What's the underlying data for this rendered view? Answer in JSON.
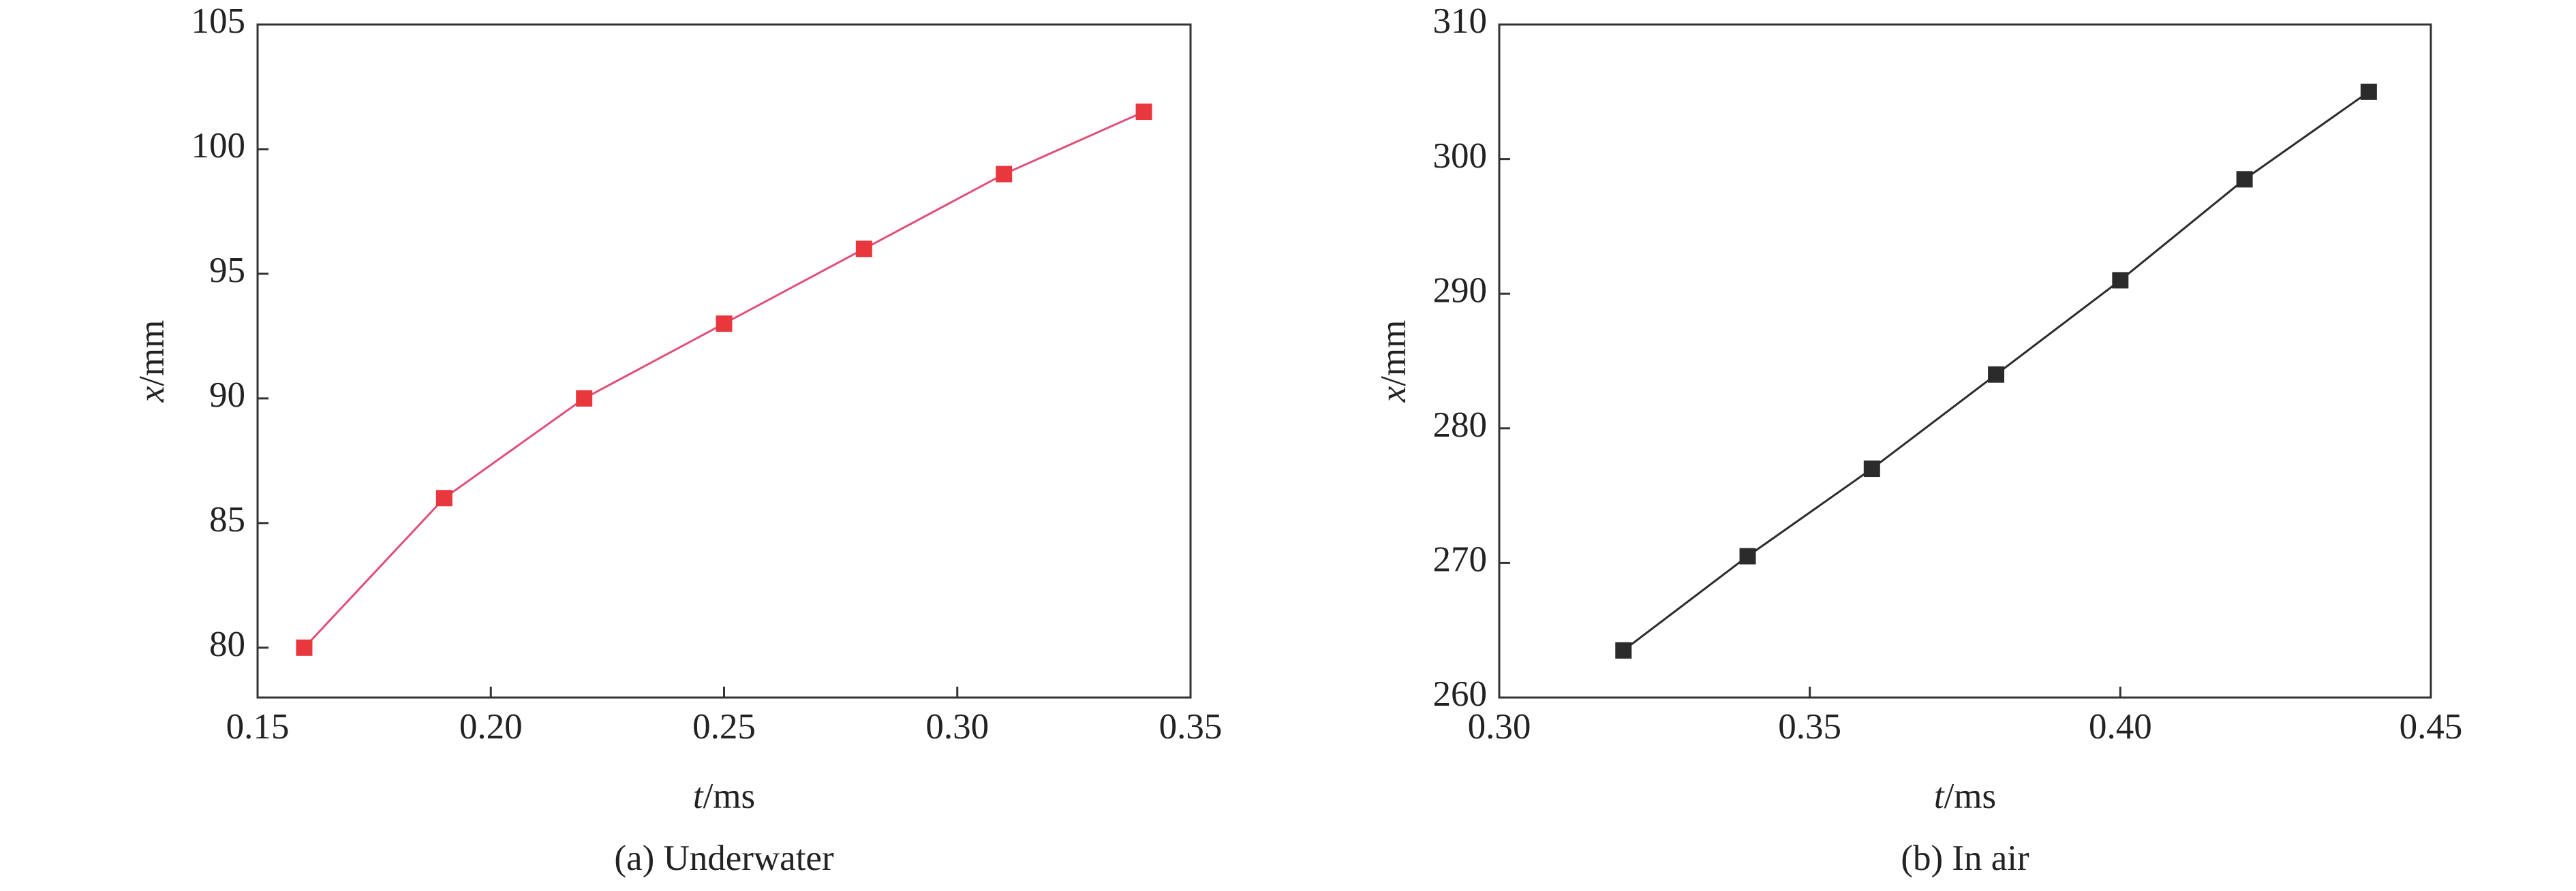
{
  "chart_data": [
    {
      "type": "line",
      "caption": "(a) Underwater",
      "xlabel": "t/ms",
      "ylabel": "x/mm",
      "x": [
        0.16,
        0.19,
        0.22,
        0.25,
        0.28,
        0.31,
        0.34
      ],
      "values": [
        80,
        86,
        90,
        93,
        96,
        99,
        101.5
      ],
      "color": "#e8383d",
      "line_color": "#e0507a",
      "xlim": [
        0.15,
        0.35
      ],
      "xticks": [
        0.15,
        {
          "value": 0.2,
          "label": "0.20"
        },
        0.25,
        {
          "value": 0.3,
          "label": "0.30"
        },
        0.35
      ],
      "ylim": [
        78,
        105
      ],
      "yticks": [
        80,
        85,
        90,
        95,
        100,
        105
      ]
    },
    {
      "type": "line",
      "caption": "(b) In air",
      "xlabel": "t/ms",
      "ylabel": "x/mm",
      "x": [
        0.32,
        0.34,
        0.36,
        0.38,
        0.4,
        0.42,
        0.44
      ],
      "values": [
        263.5,
        270.5,
        277,
        284,
        291,
        298.5,
        305
      ],
      "color": "#2b2b2b",
      "line_color": "#2b2b2b",
      "xlim": [
        0.3,
        0.45
      ],
      "xticks": [
        {
          "value": 0.3,
          "label": "0.30"
        },
        0.35,
        {
          "value": 0.4,
          "label": "0.40"
        },
        0.45
      ],
      "ylim": [
        260,
        310
      ],
      "yticks": [
        260,
        270,
        280,
        290,
        300,
        310
      ]
    }
  ]
}
